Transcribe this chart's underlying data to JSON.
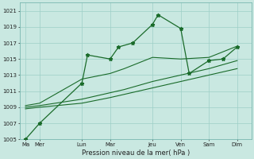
{
  "xlabel": "Pression niveau de la mer( hPa )",
  "bg_color": "#c9e8e1",
  "grid_color": "#9dcfc7",
  "line_color": "#1a6b2a",
  "ylim": [
    1005,
    1022
  ],
  "yticks": [
    1005,
    1007,
    1009,
    1011,
    1013,
    1015,
    1017,
    1019,
    1021
  ],
  "xtick_labels": [
    "Ma",
    "Mer",
    "Lun",
    "Mar",
    "Jeu",
    "Ven",
    "Sam",
    "Dim"
  ],
  "xtick_positions": [
    0,
    0.5,
    2,
    3,
    4.5,
    5.5,
    6.5,
    7.5
  ],
  "xlim": [
    -0.2,
    8.0
  ],
  "line1_x": [
    0,
    0.5,
    2,
    2.2,
    3,
    3.3,
    3.8,
    4.5,
    4.7,
    5.5,
    5.8,
    6.5,
    7.0,
    7.5
  ],
  "line1_y": [
    1005,
    1007,
    1012,
    1015.5,
    1015,
    1016.5,
    1017,
    1019.3,
    1020.5,
    1018.8,
    1013.2,
    1014.8,
    1015,
    1016.5
  ],
  "line2_x": [
    0,
    0.5,
    2,
    3,
    3.5,
    4.5,
    5.5,
    6.5,
    7.5
  ],
  "line2_y": [
    1009.2,
    1009.5,
    1012.5,
    1013.2,
    1013.8,
    1015.2,
    1015.0,
    1015.2,
    1016.6
  ],
  "line3_x": [
    0,
    0.5,
    2,
    3,
    3.5,
    4.5,
    5.5,
    6.5,
    7.5
  ],
  "line3_y": [
    1009.0,
    1009.2,
    1010.0,
    1010.8,
    1011.2,
    1012.2,
    1013.0,
    1013.8,
    1014.8
  ],
  "line4_x": [
    0,
    0.5,
    2,
    3,
    3.5,
    4.5,
    5.5,
    6.5,
    7.5
  ],
  "line4_y": [
    1008.8,
    1009.0,
    1009.5,
    1010.2,
    1010.6,
    1011.4,
    1012.2,
    1013.0,
    1013.8
  ]
}
